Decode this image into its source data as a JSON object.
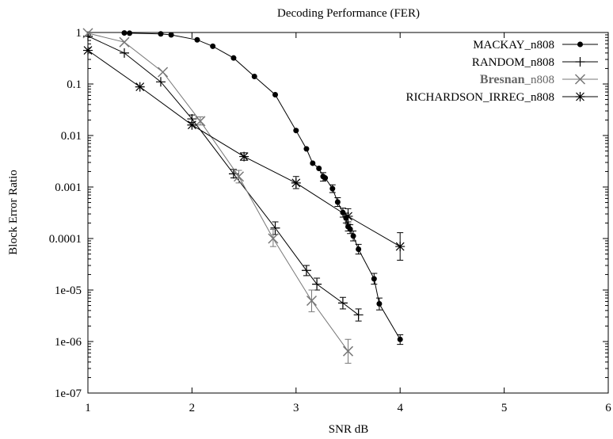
{
  "chart_data": {
    "type": "scatter",
    "title": "Decoding Performance (FER)",
    "xlabel": "SNR dB",
    "ylabel": "Block Error Ratio",
    "xlim": [
      1,
      6
    ],
    "ylim": [
      1e-07,
      1
    ],
    "yscale": "log",
    "grid": false,
    "legend_position": "top-right",
    "x_ticks": [
      {
        "value": 1,
        "label": "1"
      },
      {
        "value": 2,
        "label": "2"
      },
      {
        "value": 3,
        "label": "3"
      },
      {
        "value": 4,
        "label": "4"
      },
      {
        "value": 5,
        "label": "5"
      },
      {
        "value": 6,
        "label": "6"
      }
    ],
    "y_ticks": [
      {
        "value": 1,
        "label": "1"
      },
      {
        "value": 0.1,
        "label": "0.1"
      },
      {
        "value": 0.01,
        "label": "0.01"
      },
      {
        "value": 0.001,
        "label": "0.001"
      },
      {
        "value": 0.0001,
        "label": "0.0001"
      },
      {
        "value": 1e-05,
        "label": "1e-05"
      },
      {
        "value": 1e-06,
        "label": "1e-06"
      },
      {
        "value": 1e-07,
        "label": "1e-07"
      }
    ],
    "series": [
      {
        "name": "MACKAY_n808",
        "name_prefix": "MACKAY",
        "name_suffix": "_n808",
        "marker": "dot",
        "color": "#000000",
        "connect": true,
        "points": [
          {
            "x": 1.35,
            "y": 0.98
          },
          {
            "x": 1.4,
            "y": 0.97
          },
          {
            "x": 1.7,
            "y": 0.94
          },
          {
            "x": 1.8,
            "y": 0.9
          },
          {
            "x": 2.05,
            "y": 0.72
          },
          {
            "x": 2.2,
            "y": 0.54
          },
          {
            "x": 2.4,
            "y": 0.32
          },
          {
            "x": 2.6,
            "y": 0.14
          },
          {
            "x": 2.8,
            "y": 0.062
          },
          {
            "x": 3.0,
            "y": 0.0125
          },
          {
            "x": 3.1,
            "y": 0.0055
          },
          {
            "x": 3.16,
            "y": 0.0029
          },
          {
            "x": 3.22,
            "y": 0.0023
          },
          {
            "x": 3.26,
            "y": 0.0016,
            "err": [
              0.0013,
              0.0019
            ]
          },
          {
            "x": 3.28,
            "y": 0.0015
          },
          {
            "x": 3.35,
            "y": 0.00093,
            "err": [
              0.00078,
              0.0011
            ]
          },
          {
            "x": 3.4,
            "y": 0.00051,
            "err": [
              0.00042,
              0.00062
            ]
          },
          {
            "x": 3.45,
            "y": 0.00032,
            "err": [
              0.00026,
              0.00039
            ]
          },
          {
            "x": 3.48,
            "y": 0.00025,
            "err": [
              0.0002,
              0.00031
            ]
          },
          {
            "x": 3.5,
            "y": 0.00017,
            "err": [
              0.00014,
              0.00021
            ]
          },
          {
            "x": 3.52,
            "y": 0.000152,
            "err": [
              0.000125,
              0.000185
            ]
          },
          {
            "x": 3.55,
            "y": 0.000112,
            "err": [
              9e-05,
              0.00014
            ]
          },
          {
            "x": 3.6,
            "y": 6.2e-05,
            "err": [
              5e-05,
              7.7e-05
            ]
          },
          {
            "x": 3.75,
            "y": 1.65e-05,
            "err": [
              1.3e-05,
              2.1e-05
            ]
          },
          {
            "x": 3.8,
            "y": 5.4e-06,
            "err": [
              4.1e-06,
              7e-06
            ]
          },
          {
            "x": 4.0,
            "y": 1.1e-06,
            "err": [
              8.8e-07,
              1.35e-06
            ]
          }
        ]
      },
      {
        "name": "RANDOM_n808",
        "name_prefix": "RANDOM",
        "name_suffix": "_n808",
        "marker": "plus",
        "color": "#000000",
        "connect": true,
        "points": [
          {
            "x": 1.0,
            "y": 0.85
          },
          {
            "x": 1.35,
            "y": 0.4
          },
          {
            "x": 1.7,
            "y": 0.11
          },
          {
            "x": 2.0,
            "y": 0.021,
            "err": [
              0.018,
              0.025
            ]
          },
          {
            "x": 2.4,
            "y": 0.0018,
            "err": [
              0.0015,
              0.0022
            ]
          },
          {
            "x": 2.8,
            "y": 0.00016,
            "err": [
              0.00012,
              0.00021
            ]
          },
          {
            "x": 3.1,
            "y": 2.4e-05,
            "err": [
              1.9e-05,
              3e-05
            ]
          },
          {
            "x": 3.2,
            "y": 1.3e-05,
            "err": [
              1e-05,
              1.7e-05
            ]
          },
          {
            "x": 3.45,
            "y": 5.6e-06,
            "err": [
              4.3e-06,
              7.2e-06
            ]
          },
          {
            "x": 3.6,
            "y": 3.3e-06,
            "err": [
              2.5e-06,
              4.3e-06
            ]
          }
        ]
      },
      {
        "name": "Bresnan_n808",
        "name_prefix": "Bresnan",
        "name_suffix": "_n808",
        "marker": "cross",
        "color": "#777777",
        "connect": true,
        "points": [
          {
            "x": 1.0,
            "y": 0.97
          },
          {
            "x": 1.35,
            "y": 0.65
          },
          {
            "x": 1.72,
            "y": 0.17
          },
          {
            "x": 2.08,
            "y": 0.019,
            "err": [
              0.016,
              0.023
            ]
          },
          {
            "x": 2.45,
            "y": 0.0016,
            "err": [
              0.0012,
              0.0021
            ]
          },
          {
            "x": 2.78,
            "y": 0.0001,
            "err": [
              7e-05,
              0.00015
            ]
          },
          {
            "x": 3.15,
            "y": 6.2e-06,
            "err": [
              3.8e-06,
              1e-05
            ]
          },
          {
            "x": 3.5,
            "y": 6.5e-07,
            "err": [
              3.8e-07,
              1.1e-06
            ]
          }
        ]
      },
      {
        "name": "RICHARDSON_IRREG_n808",
        "name_prefix": "RICHARDSON_IRREG",
        "name_suffix": "_n808",
        "marker": "star",
        "color": "#000000",
        "connect": true,
        "points": [
          {
            "x": 1.0,
            "y": 0.45
          },
          {
            "x": 1.5,
            "y": 0.088
          },
          {
            "x": 2.0,
            "y": 0.016
          },
          {
            "x": 2.5,
            "y": 0.0039,
            "err": [
              0.0033,
              0.0046
            ]
          },
          {
            "x": 3.0,
            "y": 0.0012,
            "err": [
              0.00093,
              0.0016
            ]
          },
          {
            "x": 3.5,
            "y": 0.00027,
            "err": [
              0.00019,
              0.00038
            ]
          },
          {
            "x": 4.0,
            "y": 7e-05,
            "err": [
              3.8e-05,
              0.00013
            ]
          }
        ]
      }
    ]
  }
}
